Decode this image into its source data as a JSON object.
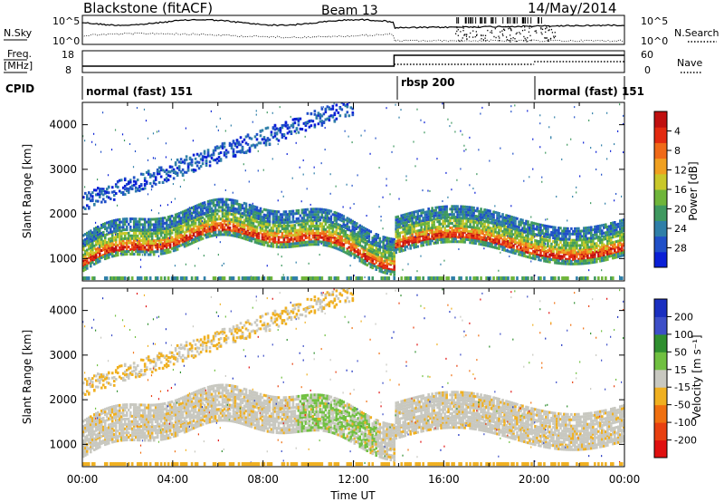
{
  "header": {
    "station": "Blackstone (fitACF)",
    "beam": "Beam 13",
    "date": "14/May/2014"
  },
  "top_panels": {
    "nsky_label": "N.Sky",
    "nsearch_label": "N.Search",
    "noise_ticks": [
      "10^5",
      "10^0"
    ],
    "freq_label_1": "Freq.",
    "freq_label_2": "[MHz]",
    "freq_ticks": [
      "18",
      "8"
    ],
    "nave_label": "Nave",
    "nave_ticks": [
      "60",
      "0"
    ],
    "cpid_label": "CPID",
    "cpid_segments": [
      {
        "label": "normal (fast) 151",
        "start": 0,
        "end": 14
      },
      {
        "label": "rbsp 200",
        "start": 14,
        "end": 20
      },
      {
        "label": "normal (fast) 151",
        "start": 20,
        "end": 24
      }
    ]
  },
  "chart_data": [
    {
      "type": "heatmap",
      "name": "power",
      "ylabel": "Slant Range [km]",
      "yticks": [
        1000,
        2000,
        3000,
        4000
      ],
      "ylim": [
        500,
        4500
      ],
      "xlim": [
        0,
        24
      ],
      "colorbar": {
        "label": "Power [dB]",
        "ticks": [
          "4",
          "8",
          "12",
          "16",
          "20",
          "24",
          "28"
        ],
        "colors": [
          "#0a1fd6",
          "#2050c8",
          "#2f7fa8",
          "#3f9960",
          "#6fb53a",
          "#c9c82a",
          "#f0a020",
          "#f06a18",
          "#e32a10",
          "#c01010"
        ]
      }
    },
    {
      "type": "heatmap",
      "name": "velocity",
      "ylabel": "Slant Range [km]",
      "yticks": [
        1000,
        2000,
        3000,
        4000
      ],
      "ylim": [
        500,
        4500
      ],
      "xlim": [
        0,
        24
      ],
      "xlabel": "Time UT",
      "xticks": [
        "00:00",
        "04:00",
        "08:00",
        "12:00",
        "16:00",
        "20:00",
        "00:00"
      ],
      "colorbar": {
        "label": "Velocity [m s⁻¹]",
        "ticks": [
          "200",
          "100",
          "50",
          "15",
          "-15",
          "-50",
          "-100",
          "-200"
        ],
        "colors": [
          "#1a2fc0",
          "#3d4fc8",
          "#2f8f2f",
          "#70c040",
          "#c8c8c0",
          "#f0b020",
          "#f07010",
          "#e84010",
          "#e01010"
        ]
      }
    }
  ]
}
